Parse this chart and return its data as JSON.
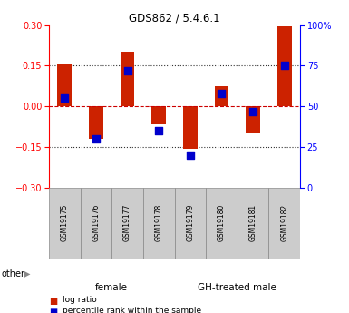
{
  "title": "GDS862 / 5.4.6.1",
  "samples": [
    "GSM19175",
    "GSM19176",
    "GSM19177",
    "GSM19178",
    "GSM19179",
    "GSM19180",
    "GSM19181",
    "GSM19182"
  ],
  "log_ratio": [
    0.155,
    -0.12,
    0.2,
    -0.065,
    -0.155,
    0.075,
    -0.1,
    0.295
  ],
  "percentile_rank": [
    55,
    30,
    72,
    35,
    20,
    58,
    47,
    75
  ],
  "groups": [
    {
      "label": "female",
      "start": 0,
      "end": 4,
      "color": "#BBFFBB"
    },
    {
      "label": "GH-treated male",
      "start": 4,
      "end": 8,
      "color": "#44EE44"
    }
  ],
  "ylim": [
    -0.3,
    0.3
  ],
  "yticks_left": [
    -0.3,
    -0.15,
    0.0,
    0.15,
    0.3
  ],
  "yticks_right_labels": [
    "0",
    "25",
    "50",
    "75",
    "100%"
  ],
  "bar_color": "#CC2200",
  "dot_color": "#0000CC",
  "bar_width": 0.45,
  "dot_size": 30,
  "hline_color": "#CC0000",
  "dotted_color": "#333333",
  "sample_bg": "#CCCCCC",
  "other_text": "other"
}
